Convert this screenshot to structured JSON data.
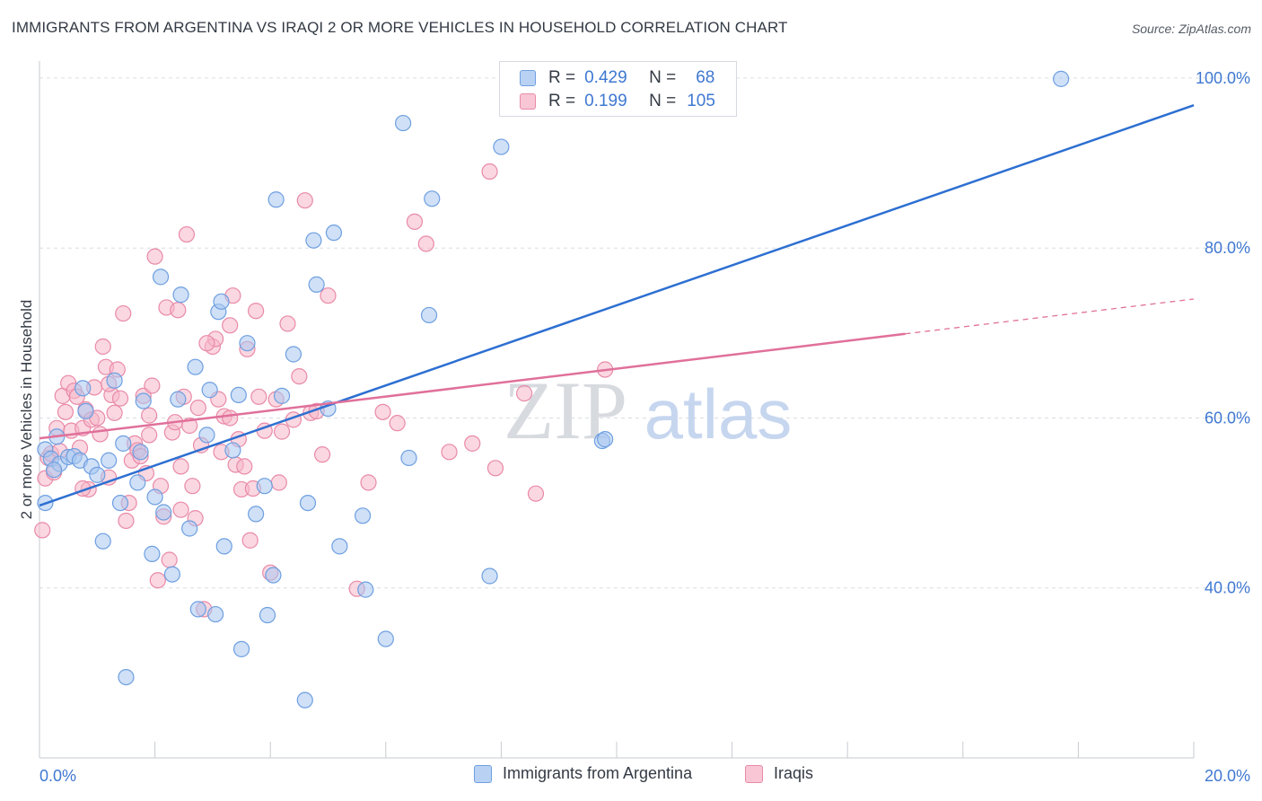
{
  "title": "IMMIGRANTS FROM ARGENTINA VS IRAQI 2 OR MORE VEHICLES IN HOUSEHOLD CORRELATION CHART",
  "source": "Source: ZipAtlas.com",
  "watermark": {
    "zip": "ZIP",
    "atlas": "atlas"
  },
  "colors": {
    "blue_fill": "#a8c6f0",
    "blue_stroke": "#6e9fe0",
    "blue_line": "#2d6fd1",
    "pink_fill": "#f5b7c9",
    "pink_stroke": "#e98aa8",
    "pink_line": "#e0709a",
    "tick_label": "#3f78d1",
    "grid": "#d9dde3"
  },
  "legend": {
    "r_label": "R =",
    "n_label": "N =",
    "blue": {
      "r": "0.429",
      "n": "68"
    },
    "pink": {
      "r": "0.199",
      "n": "105"
    }
  },
  "bottom_legend": {
    "blue": "Immigrants from Argentina",
    "pink": "Iraqis"
  },
  "chart_data": {
    "type": "scatter",
    "xlabel": "",
    "ylabel": "2 or more Vehicles in Household",
    "xlim": [
      0,
      20
    ],
    "ylim": [
      20,
      102
    ],
    "x_tick_labels": [
      "0.0%",
      "20.0%"
    ],
    "y_ticks": [
      40,
      60,
      80,
      100
    ],
    "y_tick_labels": [
      "40.0%",
      "60.0%",
      "80.0%",
      "100.0%"
    ],
    "grid": true,
    "legend_position": "top-center",
    "series": [
      {
        "name": "Immigrants from Argentina",
        "color": "#a8c6f0",
        "trend": {
          "x0": 0,
          "y0": 49.7,
          "x1": 20,
          "y1": 96.8,
          "dashed_from": null
        },
        "points": [
          [
            0.1,
            50.0
          ],
          [
            0.1,
            56.3
          ],
          [
            0.2,
            55.2
          ],
          [
            0.3,
            57.8
          ],
          [
            0.35,
            54.6
          ],
          [
            0.5,
            55.4
          ],
          [
            0.6,
            55.5
          ],
          [
            0.7,
            55.0
          ],
          [
            0.75,
            63.5
          ],
          [
            0.8,
            60.8
          ],
          [
            0.9,
            54.3
          ],
          [
            1.0,
            53.3
          ],
          [
            1.1,
            45.5
          ],
          [
            1.2,
            55.0
          ],
          [
            1.3,
            64.4
          ],
          [
            1.4,
            50.0
          ],
          [
            1.45,
            57.0
          ],
          [
            1.5,
            29.5
          ],
          [
            1.7,
            52.4
          ],
          [
            1.75,
            56.0
          ],
          [
            1.8,
            62.0
          ],
          [
            1.95,
            44.0
          ],
          [
            2.0,
            50.7
          ],
          [
            2.1,
            76.6
          ],
          [
            2.15,
            48.9
          ],
          [
            2.3,
            41.6
          ],
          [
            2.4,
            62.2
          ],
          [
            2.45,
            74.5
          ],
          [
            2.6,
            47.0
          ],
          [
            2.7,
            66.0
          ],
          [
            2.75,
            37.5
          ],
          [
            2.9,
            58.0
          ],
          [
            2.95,
            63.3
          ],
          [
            3.05,
            36.9
          ],
          [
            3.1,
            72.5
          ],
          [
            3.15,
            73.7
          ],
          [
            3.2,
            44.9
          ],
          [
            3.35,
            56.2
          ],
          [
            3.45,
            62.7
          ],
          [
            3.5,
            32.8
          ],
          [
            3.6,
            68.8
          ],
          [
            3.75,
            48.7
          ],
          [
            3.9,
            52.0
          ],
          [
            3.95,
            36.8
          ],
          [
            4.05,
            41.5
          ],
          [
            4.1,
            85.7
          ],
          [
            4.2,
            62.6
          ],
          [
            4.4,
            67.5
          ],
          [
            4.6,
            26.8
          ],
          [
            4.65,
            50.0
          ],
          [
            4.75,
            80.9
          ],
          [
            4.8,
            75.7
          ],
          [
            5.0,
            61.1
          ],
          [
            5.1,
            81.8
          ],
          [
            5.2,
            44.9
          ],
          [
            5.6,
            48.5
          ],
          [
            5.65,
            39.8
          ],
          [
            6.0,
            34.0
          ],
          [
            6.3,
            94.7
          ],
          [
            6.4,
            55.3
          ],
          [
            6.75,
            72.1
          ],
          [
            6.8,
            85.8
          ],
          [
            7.8,
            41.4
          ],
          [
            8.0,
            91.9
          ],
          [
            9.75,
            57.3
          ],
          [
            9.8,
            57.5
          ],
          [
            17.7,
            99.9
          ],
          [
            0.25,
            53.9
          ]
        ]
      },
      {
        "name": "Iraqis",
        "color": "#f5b7c9",
        "trend": {
          "x0": 0,
          "y0": 57.6,
          "x1": 20,
          "y1": 74.0,
          "dashed_from": 15.0
        },
        "points": [
          [
            0.05,
            46.8
          ],
          [
            0.1,
            52.9
          ],
          [
            0.15,
            55.3
          ],
          [
            0.2,
            55.8
          ],
          [
            0.25,
            53.6
          ],
          [
            0.3,
            58.8
          ],
          [
            0.35,
            56.1
          ],
          [
            0.4,
            62.6
          ],
          [
            0.45,
            60.7
          ],
          [
            0.5,
            64.1
          ],
          [
            0.55,
            58.5
          ],
          [
            0.6,
            63.2
          ],
          [
            0.65,
            62.5
          ],
          [
            0.7,
            56.5
          ],
          [
            0.75,
            58.8
          ],
          [
            0.8,
            61.0
          ],
          [
            0.85,
            51.6
          ],
          [
            0.9,
            59.8
          ],
          [
            0.95,
            63.6
          ],
          [
            1.0,
            60.0
          ],
          [
            1.05,
            58.1
          ],
          [
            1.1,
            68.4
          ],
          [
            1.15,
            66.0
          ],
          [
            1.2,
            53.0
          ],
          [
            1.25,
            62.7
          ],
          [
            1.3,
            60.6
          ],
          [
            1.35,
            65.7
          ],
          [
            1.4,
            62.3
          ],
          [
            1.45,
            72.3
          ],
          [
            1.5,
            47.9
          ],
          [
            1.55,
            50.0
          ],
          [
            1.6,
            55.0
          ],
          [
            1.65,
            57.0
          ],
          [
            1.7,
            56.2
          ],
          [
            1.75,
            55.5
          ],
          [
            1.8,
            62.6
          ],
          [
            1.85,
            53.5
          ],
          [
            1.9,
            60.3
          ],
          [
            1.95,
            63.8
          ],
          [
            2.0,
            79.0
          ],
          [
            2.05,
            40.9
          ],
          [
            2.1,
            52.0
          ],
          [
            2.15,
            48.4
          ],
          [
            2.2,
            73.0
          ],
          [
            2.25,
            43.3
          ],
          [
            2.3,
            58.3
          ],
          [
            2.35,
            59.5
          ],
          [
            2.4,
            72.7
          ],
          [
            2.45,
            54.3
          ],
          [
            2.5,
            62.5
          ],
          [
            2.55,
            81.6
          ],
          [
            2.6,
            59.1
          ],
          [
            2.65,
            52.0
          ],
          [
            2.7,
            48.2
          ],
          [
            2.75,
            61.2
          ],
          [
            2.8,
            56.8
          ],
          [
            2.85,
            37.5
          ],
          [
            3.0,
            68.4
          ],
          [
            3.05,
            69.3
          ],
          [
            3.1,
            62.2
          ],
          [
            3.15,
            56.0
          ],
          [
            3.2,
            60.2
          ],
          [
            3.3,
            70.9
          ],
          [
            3.35,
            74.4
          ],
          [
            3.4,
            54.5
          ],
          [
            3.45,
            57.5
          ],
          [
            3.5,
            51.6
          ],
          [
            3.55,
            54.3
          ],
          [
            3.6,
            68.1
          ],
          [
            3.65,
            45.6
          ],
          [
            3.7,
            51.7
          ],
          [
            3.75,
            72.6
          ],
          [
            3.8,
            62.5
          ],
          [
            3.9,
            58.5
          ],
          [
            4.0,
            41.8
          ],
          [
            4.1,
            62.2
          ],
          [
            4.2,
            58.4
          ],
          [
            4.3,
            71.1
          ],
          [
            4.4,
            59.8
          ],
          [
            4.5,
            64.9
          ],
          [
            4.6,
            85.6
          ],
          [
            4.7,
            60.6
          ],
          [
            4.8,
            60.8
          ],
          [
            4.9,
            55.7
          ],
          [
            5.0,
            74.4
          ],
          [
            5.5,
            39.9
          ],
          [
            5.7,
            52.4
          ],
          [
            5.95,
            60.7
          ],
          [
            6.2,
            59.4
          ],
          [
            6.5,
            83.1
          ],
          [
            6.7,
            80.5
          ],
          [
            7.1,
            56.0
          ],
          [
            7.5,
            57.0
          ],
          [
            7.8,
            89.0
          ],
          [
            7.9,
            54.1
          ],
          [
            8.4,
            62.9
          ],
          [
            8.6,
            51.1
          ],
          [
            9.8,
            65.7
          ],
          [
            2.9,
            68.8
          ],
          [
            1.9,
            58.0
          ],
          [
            0.75,
            51.7
          ],
          [
            3.3,
            60.0
          ],
          [
            1.2,
            64.0
          ],
          [
            4.15,
            52.4
          ],
          [
            2.45,
            49.2
          ]
        ]
      }
    ]
  }
}
